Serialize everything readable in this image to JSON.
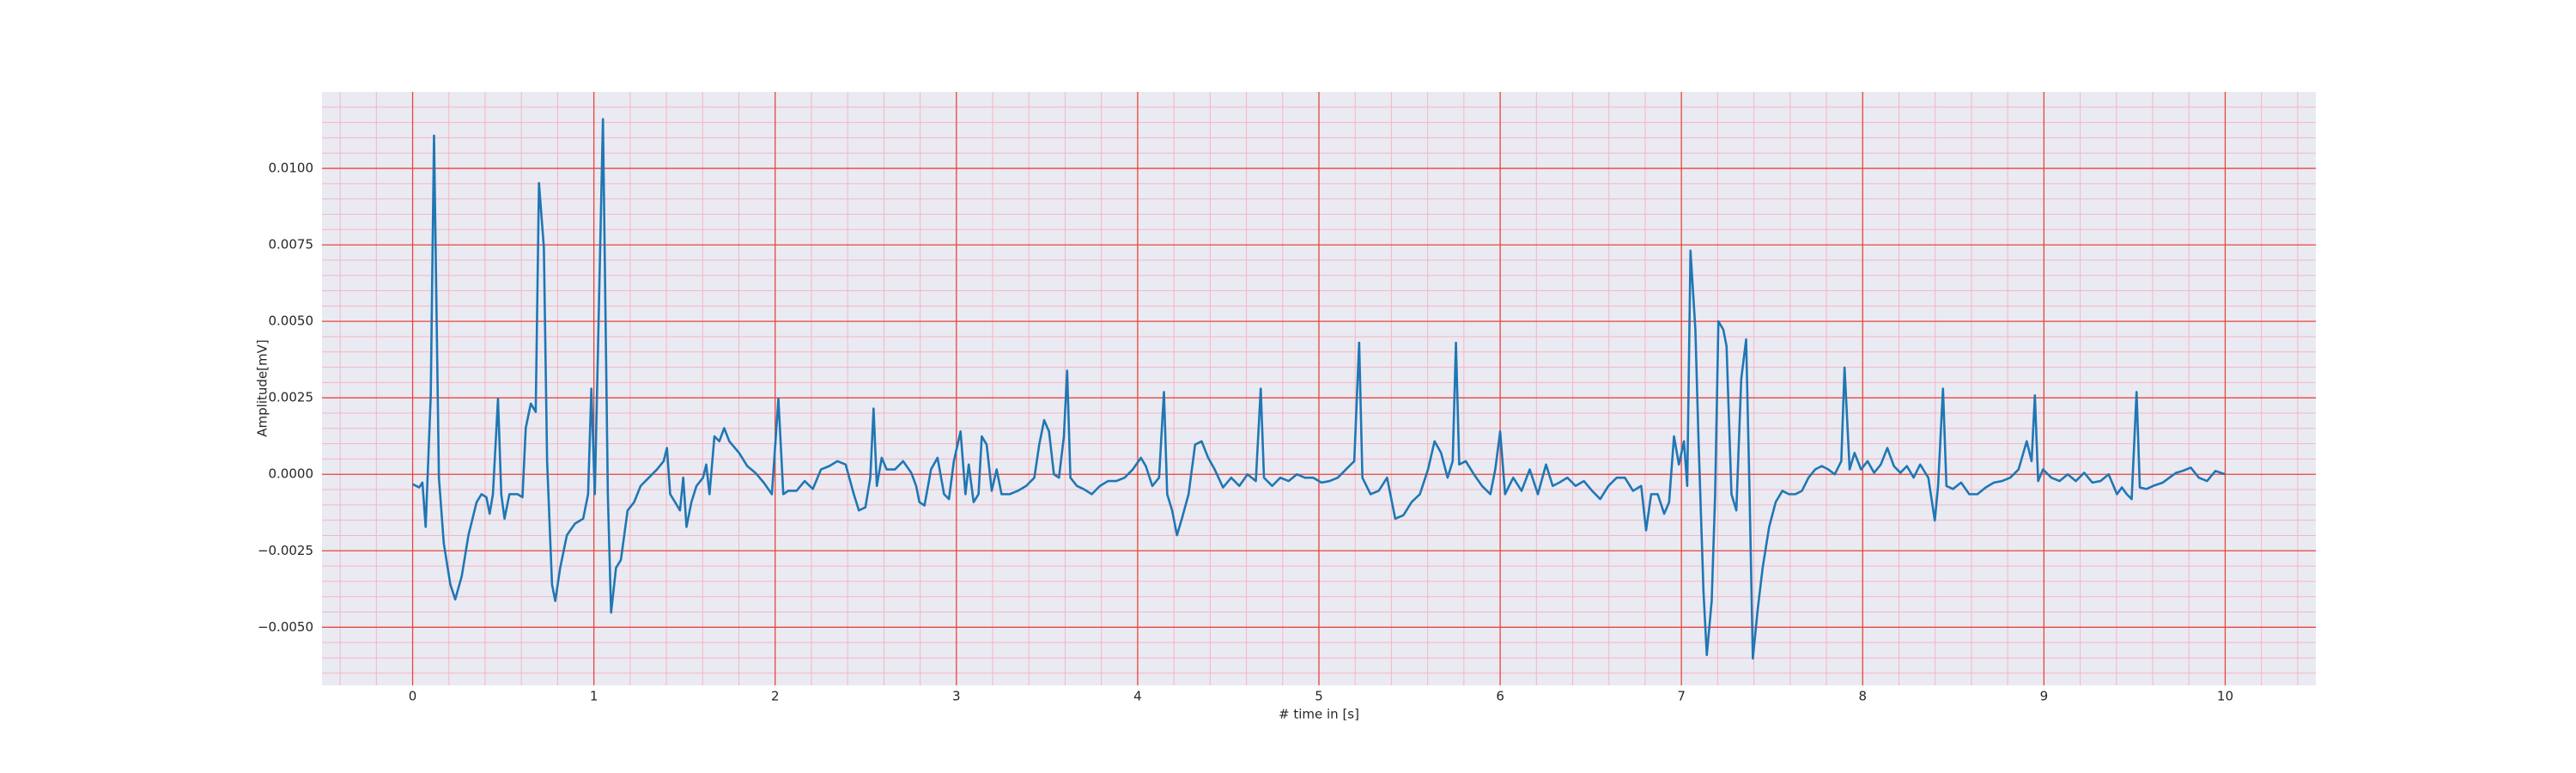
{
  "chart_data": {
    "type": "line",
    "xlabel": "# time in [s]",
    "ylabel": "Amplitude[mV]",
    "color": "#1f77b4",
    "xlim": [
      -0.5,
      10.5
    ],
    "ylim": [
      -0.0069,
      0.0125
    ],
    "xticks": [
      0,
      1,
      2,
      3,
      4,
      5,
      6,
      7,
      8,
      9,
      10
    ],
    "yticks": [
      {
        "value": -0.005,
        "label": "−0.0050"
      },
      {
        "value": -0.0025,
        "label": "−0.0025"
      },
      {
        "value": 0,
        "label": "0.0000"
      },
      {
        "value": 0.0025,
        "label": "0.0025"
      },
      {
        "value": 0.005,
        "label": "0.0050"
      },
      {
        "value": 0.0075,
        "label": "0.0075"
      },
      {
        "value": 0.01,
        "label": "0.0100"
      }
    ],
    "grid": true,
    "minor_divisions": 5,
    "x": [
      0,
      0.036,
      0.054,
      0.072,
      0.1,
      0.118,
      0.145,
      0.172,
      0.208,
      0.235,
      0.271,
      0.308,
      0.353,
      0.38,
      0.407,
      0.425,
      0.443,
      0.471,
      0.489,
      0.507,
      0.534,
      0.579,
      0.606,
      0.624,
      0.652,
      0.679,
      0.697,
      0.724,
      0.742,
      0.769,
      0.787,
      0.814,
      0.851,
      0.896,
      0.941,
      0.968,
      0.986,
      1.005,
      1.023,
      1.05,
      1.077,
      1.095,
      1.122,
      1.149,
      1.186,
      1.222,
      1.258,
      1.303,
      1.348,
      1.385,
      1.403,
      1.421,
      1.448,
      1.475,
      1.493,
      1.511,
      1.538,
      1.566,
      1.602,
      1.62,
      1.638,
      1.665,
      1.692,
      1.719,
      1.747,
      1.801,
      1.846,
      1.891,
      1.937,
      1.982,
      2.018,
      2.045,
      2.072,
      2.118,
      2.163,
      2.208,
      2.253,
      2.299,
      2.344,
      2.389,
      2.434,
      2.462,
      2.498,
      2.525,
      2.543,
      2.561,
      2.588,
      2.615,
      2.661,
      2.706,
      2.751,
      2.778,
      2.796,
      2.824,
      2.86,
      2.896,
      2.932,
      2.959,
      2.986,
      3.023,
      3.05,
      3.068,
      3.095,
      3.122,
      3.14,
      3.167,
      3.195,
      3.222,
      3.249,
      3.294,
      3.339,
      3.385,
      3.43,
      3.457,
      3.484,
      3.511,
      3.538,
      3.566,
      3.593,
      3.611,
      3.629,
      3.665,
      3.701,
      3.747,
      3.792,
      3.837,
      3.882,
      3.928,
      3.973,
      4.018,
      4.045,
      4.081,
      4.118,
      4.145,
      4.163,
      4.19,
      4.217,
      4.244,
      4.281,
      4.317,
      4.353,
      4.389,
      4.425,
      4.471,
      4.516,
      4.561,
      4.606,
      4.652,
      4.679,
      4.697,
      4.742,
      4.787,
      4.833,
      4.878,
      4.923,
      4.968,
      5.014,
      5.059,
      5.104,
      5.149,
      5.195,
      5.222,
      5.24,
      5.285,
      5.33,
      5.376,
      5.421,
      5.466,
      5.511,
      5.557,
      5.602,
      5.638,
      5.674,
      5.71,
      5.738,
      5.756,
      5.774,
      5.81,
      5.855,
      5.9,
      5.946,
      5.973,
      6,
      6.027,
      6.072,
      6.118,
      6.163,
      6.208,
      6.253,
      6.29,
      6.326,
      6.371,
      6.416,
      6.462,
      6.507,
      6.552,
      6.597,
      6.643,
      6.688,
      6.733,
      6.778,
      6.805,
      6.833,
      6.869,
      6.905,
      6.932,
      6.959,
      6.986,
      7.014,
      7.032,
      7.05,
      7.077,
      7.095,
      7.122,
      7.14,
      7.167,
      7.186,
      7.204,
      7.231,
      7.249,
      7.276,
      7.303,
      7.33,
      7.357,
      7.376,
      7.394,
      7.421,
      7.448,
      7.484,
      7.52,
      7.557,
      7.593,
      7.629,
      7.665,
      7.701,
      7.738,
      7.774,
      7.81,
      7.846,
      7.882,
      7.9,
      7.928,
      7.955,
      7.991,
      8.027,
      8.063,
      8.1,
      8.136,
      8.172,
      8.208,
      8.244,
      8.281,
      8.317,
      8.362,
      8.398,
      8.416,
      8.443,
      8.462,
      8.498,
      8.543,
      8.588,
      8.633,
      8.679,
      8.724,
      8.769,
      8.814,
      8.86,
      8.905,
      8.932,
      8.95,
      8.968,
      8.995,
      9.041,
      9.086,
      9.131,
      9.176,
      9.222,
      9.267,
      9.312,
      9.357,
      9.403,
      9.43,
      9.457,
      9.484,
      9.511,
      9.529,
      9.566,
      9.602,
      9.656,
      9.692,
      9.729,
      9.765,
      9.81,
      9.855,
      9.9,
      9.946,
      10
    ],
    "values": [
      -0.00032,
      -0.00043,
      -0.00027,
      -0.00172,
      0.00258,
      0.01107,
      -0.00011,
      -0.00226,
      -0.0036,
      -0.00409,
      -0.00333,
      -0.00199,
      -0.00091,
      -0.00065,
      -0.00075,
      -0.00129,
      -0.00065,
      0.00247,
      -0.00065,
      -0.00145,
      -0.00065,
      -0.00065,
      -0.00075,
      0.00151,
      0.00231,
      0.00204,
      0.00952,
      0.00742,
      0.00043,
      -0.0036,
      -0.00414,
      -0.00306,
      -0.00199,
      -0.00161,
      -0.00145,
      -0.00065,
      0.0028,
      -0.00065,
      0.00419,
      0.01161,
      -0.00065,
      -0.00452,
      -0.00306,
      -0.0028,
      -0.00118,
      -0.00091,
      -0.00038,
      -0.00011,
      0.00016,
      0.00043,
      0.00086,
      -0.00065,
      -0.00091,
      -0.00118,
      -0.00011,
      -0.00172,
      -0.00091,
      -0.00038,
      -0.00011,
      0.00032,
      -0.00065,
      0.00124,
      0.00108,
      0.00151,
      0.00108,
      0.0007,
      0.00027,
      5e-05,
      -0.00027,
      -0.00065,
      0.00247,
      -0.00065,
      -0.00054,
      -0.00054,
      -0.00022,
      -0.00048,
      0.00016,
      0.00027,
      0.00043,
      0.00032,
      -0.00065,
      -0.00118,
      -0.00108,
      -0.00011,
      0.00215,
      -0.00038,
      0.00054,
      0.00016,
      0.00016,
      0.00043,
      5e-05,
      -0.00038,
      -0.00091,
      -0.00102,
      0.00016,
      0.00054,
      -0.00065,
      -0.00081,
      0.00043,
      0.0014,
      -0.00065,
      0.00032,
      -0.00091,
      -0.00065,
      0.00124,
      0.00097,
      -0.00054,
      0.00016,
      -0.00065,
      -0.00065,
      -0.00054,
      -0.00038,
      -0.00011,
      0.00097,
      0.00177,
      0.0014,
      0,
      -0.00011,
      0.00124,
      0.00339,
      -0.00011,
      -0.00038,
      -0.00048,
      -0.00065,
      -0.00038,
      -0.00022,
      -0.00022,
      -0.00011,
      0.00016,
      0.00054,
      0.00027,
      -0.00038,
      -0.00011,
      0.00269,
      -0.00065,
      -0.00118,
      -0.00199,
      -0.00145,
      -0.00065,
      0.00097,
      0.00108,
      0.00054,
      0.00016,
      -0.00043,
      -0.00011,
      -0.00038,
      0,
      -0.00022,
      0.0028,
      -0.00011,
      -0.00038,
      -0.00011,
      -0.00022,
      0,
      -0.00011,
      -0.00011,
      -0.00027,
      -0.00022,
      -0.00011,
      0.00016,
      0.00043,
      0.0043,
      -0.00011,
      -0.00065,
      -0.00054,
      -0.00011,
      -0.00145,
      -0.00134,
      -0.00091,
      -0.00065,
      0.00016,
      0.00108,
      0.0007,
      -0.00011,
      0.00043,
      0.0043,
      0.00032,
      0.00043,
      0,
      -0.00038,
      -0.00065,
      0.00016,
      0.0014,
      -0.00065,
      -0.00011,
      -0.00054,
      0.00016,
      -0.00065,
      0.00032,
      -0.00038,
      -0.00027,
      -0.00011,
      -0.00038,
      -0.00022,
      -0.00054,
      -0.00081,
      -0.00038,
      -0.00011,
      -0.00011,
      -0.00054,
      -0.00038,
      -0.00183,
      -0.00065,
      -0.00065,
      -0.00129,
      -0.00091,
      0.00124,
      0.00032,
      0.00108,
      -0.00038,
      0.00731,
      0.00473,
      0.00097,
      -0.00387,
      -0.00591,
      -0.00414,
      -0.00065,
      0.005,
      0.00473,
      0.00419,
      -0.00065,
      -0.00118,
      0.00312,
      0.00441,
      -0.00065,
      -0.00602,
      -0.00441,
      -0.00306,
      -0.00172,
      -0.00091,
      -0.00054,
      -0.00065,
      -0.00065,
      -0.00054,
      -0.00011,
      0.00016,
      0.00027,
      0.00016,
      0,
      0.00043,
      0.00349,
      0.00016,
      0.0007,
      0.00016,
      0.00043,
      5e-05,
      0.00032,
      0.00086,
      0.00027,
      5e-05,
      0.00027,
      -0.00011,
      0.00032,
      -0.00011,
      -0.00151,
      -0.00038,
      0.0028,
      -0.00038,
      -0.00048,
      -0.00027,
      -0.00065,
      -0.00065,
      -0.00043,
      -0.00027,
      -0.00022,
      -0.00011,
      0.00016,
      0.00108,
      0.00043,
      0.00258,
      -0.00022,
      0.00016,
      -0.00011,
      -0.00022,
      0,
      -0.00022,
      5e-05,
      -0.00027,
      -0.00022,
      0,
      -0.00065,
      -0.00043,
      -0.00065,
      -0.00081,
      0.00269,
      -0.00043,
      -0.00048,
      -0.00038,
      -0.00027,
      -0.00011,
      5e-05,
      0.00011,
      0.00022,
      -0.00011,
      -0.00022,
      0.00011,
      0
    ]
  }
}
